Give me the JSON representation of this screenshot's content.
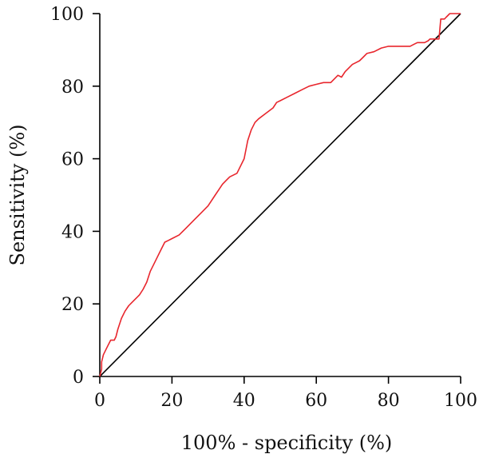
{
  "chart_data": {
    "type": "line",
    "title": "",
    "xlabel": "100% - specificity (%)",
    "ylabel": "Sensitivity (%)",
    "xlim": [
      0,
      100
    ],
    "ylim": [
      0,
      100
    ],
    "xticks": [
      0,
      20,
      40,
      60,
      80,
      100
    ],
    "yticks": [
      0,
      20,
      40,
      60,
      80,
      100
    ],
    "grid": false,
    "legend": "none",
    "series": [
      {
        "color": "#e8262d",
        "x": [
          0,
          0.5,
          0.5,
          1,
          2,
          3,
          3,
          4,
          4.5,
          5,
          6,
          7,
          8,
          9,
          10,
          11,
          12,
          13,
          14,
          15,
          16,
          17,
          18,
          19,
          20,
          22,
          24,
          26,
          28,
          30,
          32,
          33,
          34,
          35,
          36,
          38,
          40,
          41,
          42,
          43,
          44,
          46,
          48,
          49,
          50,
          52,
          54,
          56,
          58,
          60,
          62,
          64,
          66,
          67,
          67,
          68,
          69,
          70,
          71,
          72,
          73,
          74,
          76,
          78,
          80,
          82,
          84,
          86,
          87,
          88,
          90,
          91,
          91.5,
          92,
          93,
          94,
          94.5,
          95,
          95.5,
          96,
          97,
          97.5,
          98,
          99,
          100
        ],
        "y": [
          0,
          2,
          4,
          6,
          8,
          10,
          10,
          10,
          11,
          13,
          16,
          18,
          19.5,
          20.5,
          21.5,
          22.5,
          24,
          26,
          29,
          31,
          33,
          35,
          37,
          37.5,
          38,
          39,
          41,
          43,
          45,
          47,
          50,
          51.5,
          53,
          54,
          55,
          56,
          60,
          65,
          68,
          70,
          71,
          72.5,
          74,
          75.5,
          76,
          77,
          78,
          79,
          80,
          80.5,
          81,
          81,
          83,
          82.5,
          82.5,
          84,
          85,
          86,
          86.5,
          87,
          88,
          89,
          89.5,
          90.5,
          91,
          91,
          91,
          91,
          91.5,
          92,
          92,
          92.5,
          93,
          93,
          93,
          93,
          98.5,
          98.5,
          98.5,
          99,
          100,
          100,
          100,
          100,
          100
        ]
      }
    ],
    "reference_line": {
      "color": "#000000",
      "x": [
        0,
        100
      ],
      "y": [
        0,
        100
      ]
    }
  }
}
